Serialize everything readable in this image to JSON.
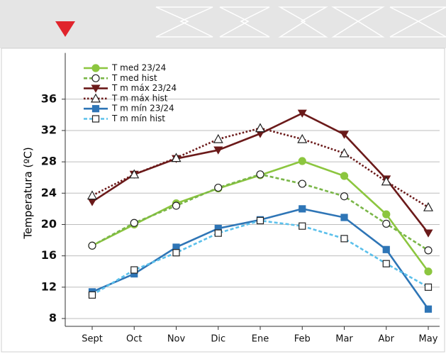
{
  "chart_data": {
    "type": "line",
    "y_label": "Temperatura (ºC)",
    "categories": [
      "Sept",
      "Oct",
      "Nov",
      "Dic",
      "Ene",
      "Feb",
      "Mar",
      "Abr",
      "May"
    ],
    "series": [
      {
        "name": "T med 23/24",
        "color": "#8cc63f",
        "dash": "solid",
        "marker": "circle",
        "filled": true,
        "values": [
          17.3,
          20.0,
          22.7,
          24.6,
          26.3,
          28.1,
          26.2,
          21.3,
          14.0
        ]
      },
      {
        "name": "T med hist",
        "color": "#7ab648",
        "dash": "dashed",
        "marker": "circle",
        "filled": false,
        "values": [
          17.3,
          20.2,
          22.4,
          24.7,
          26.4,
          25.2,
          23.6,
          20.1,
          16.7
        ]
      },
      {
        "name": "T m máx 23/24",
        "color": "#6b1a1a",
        "dash": "solid",
        "marker": "triangle-down",
        "filled": true,
        "values": [
          22.9,
          26.4,
          28.4,
          29.5,
          31.6,
          34.2,
          31.5,
          25.8,
          18.9
        ]
      },
      {
        "name": "T m máx hist",
        "color": "#6b1a1a",
        "dash": "dotted",
        "marker": "triangle-up",
        "filled": false,
        "values": [
          23.7,
          26.4,
          28.5,
          30.9,
          32.3,
          30.9,
          29.1,
          25.5,
          22.2
        ]
      },
      {
        "name": "T m mín 23/24",
        "color": "#2e75b6",
        "dash": "solid",
        "marker": "square",
        "filled": true,
        "values": [
          11.4,
          13.7,
          17.1,
          19.5,
          20.6,
          22.0,
          20.9,
          16.8,
          9.2
        ]
      },
      {
        "name": "T m mín hist",
        "color": "#5bc0eb",
        "dash": "dashed",
        "marker": "square",
        "filled": false,
        "values": [
          11.0,
          14.2,
          16.4,
          18.9,
          20.5,
          19.8,
          18.2,
          15.0,
          12.0
        ]
      }
    ],
    "ylim": [
      7,
      41
    ],
    "yticks": [
      8,
      12,
      16,
      20,
      24,
      28,
      32,
      36
    ],
    "grid": true
  }
}
